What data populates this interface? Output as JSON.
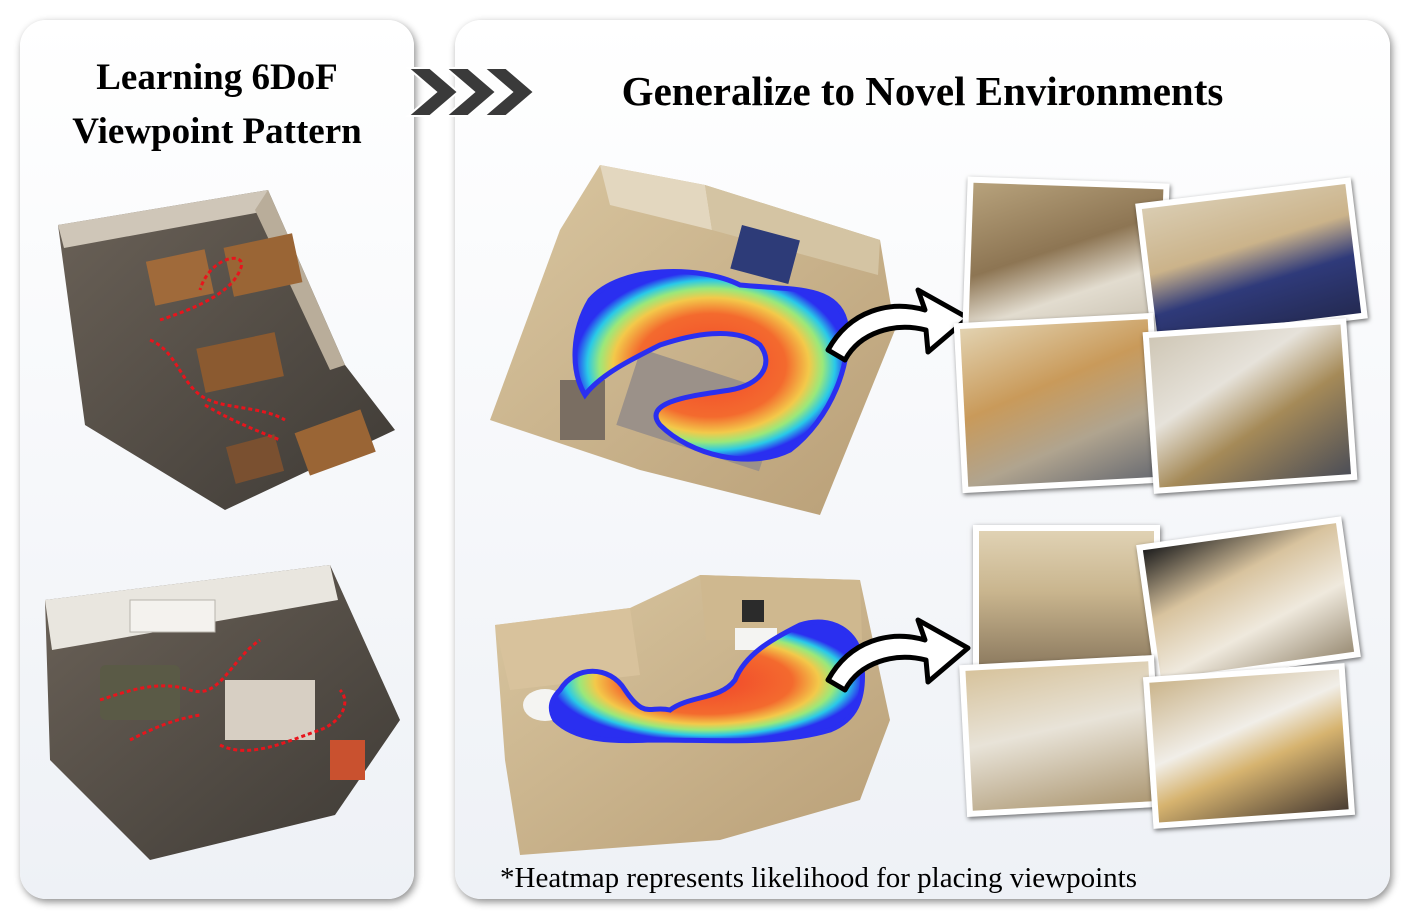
{
  "left_panel": {
    "title_line1": "Learning 6DoF",
    "title_line2": "Viewpoint Pattern",
    "scenes": [
      "learned-scene-1",
      "learned-scene-2"
    ],
    "trajectory_color": "#e8141c"
  },
  "arrow_icon": "triple-chevron-right-icon",
  "right_panel": {
    "title": "Generalize to Novel Environments",
    "footnote": "*Heatmap represents likelihood for placing viewpoints",
    "heatmap_colors": [
      "#2a2ff0",
      "#29c9e8",
      "#9be87a",
      "#f3c94a",
      "#f36a2e",
      "#f2452b"
    ],
    "scenes": [
      {
        "name": "novel-scene-apartment",
        "photo_count": 4
      },
      {
        "name": "novel-scene-bathroom",
        "photo_count": 4
      }
    ]
  }
}
